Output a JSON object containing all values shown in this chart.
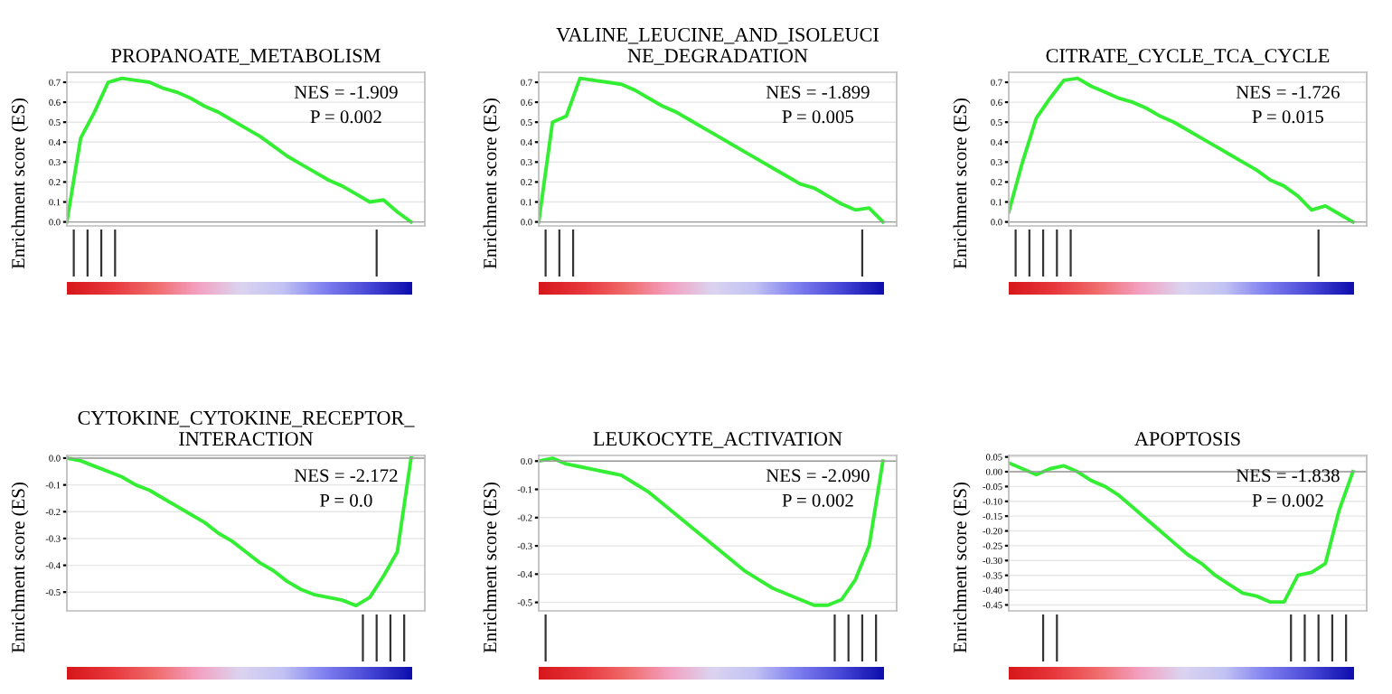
{
  "chart_data": [
    {
      "type": "line",
      "title": "PROPANOATE_METABOLISM",
      "ylabel": "Enrichment score (ES)",
      "categories": [
        null,
        null,
        null,
        null,
        null,
        null,
        null,
        null,
        null,
        null,
        null,
        null,
        null,
        null,
        null,
        null,
        null,
        null,
        null,
        null,
        null,
        null,
        null,
        null,
        null,
        null
      ],
      "series": [
        {
          "color": "#33ee33",
          "values": [
            0.0,
            0.42,
            0.55,
            0.7,
            0.72,
            0.71,
            0.7,
            0.67,
            0.65,
            0.62,
            0.58,
            0.55,
            0.51,
            0.47,
            0.43,
            0.38,
            0.33,
            0.29,
            0.25,
            0.21,
            0.18,
            0.14,
            0.1,
            0.11,
            0.05,
            0.0
          ]
        }
      ],
      "ylim": [
        -0.02,
        0.75
      ],
      "yticks": [
        {
          "value": 0,
          "label": "0.0"
        },
        0.1,
        0.2,
        0.3,
        0.4,
        0.5,
        0.6,
        0.7
      ],
      "grid": true,
      "tick_labels": "y",
      "marker": "none",
      "line_style": "solid",
      "annotations": [
        "NES = -1.909",
        "P = 0.002"
      ]
    },
    {
      "type": "line",
      "title": "VALINE_LEUCINE_AND_ISOLEUCI\nNE_DEGRADATION",
      "ylabel": "Enrichment score (ES)",
      "categories": [
        null,
        null,
        null,
        null,
        null,
        null,
        null,
        null,
        null,
        null,
        null,
        null,
        null,
        null,
        null,
        null,
        null,
        null,
        null,
        null,
        null,
        null,
        null,
        null,
        null,
        null
      ],
      "series": [
        {
          "color": "#33ee33",
          "values": [
            0.0,
            0.5,
            0.53,
            0.72,
            0.71,
            0.7,
            0.69,
            0.66,
            0.62,
            0.58,
            0.55,
            0.51,
            0.47,
            0.43,
            0.39,
            0.35,
            0.31,
            0.27,
            0.23,
            0.19,
            0.17,
            0.13,
            0.09,
            0.06,
            0.07,
            0.0
          ]
        }
      ],
      "ylim": [
        -0.02,
        0.75
      ],
      "yticks": [
        {
          "value": 0,
          "label": "0.0"
        },
        0.1,
        0.2,
        0.3,
        0.4,
        0.5,
        0.6,
        0.7
      ],
      "grid": true,
      "tick_labels": "y",
      "marker": "none",
      "line_style": "solid",
      "annotations": [
        "NES = -1.899",
        "P = 0.005"
      ]
    },
    {
      "type": "line",
      "title": "CITRATE_CYCLE_TCA_CYCLE",
      "ylabel": "Enrichment score (ES)",
      "categories": [
        null,
        null,
        null,
        null,
        null,
        null,
        null,
        null,
        null,
        null,
        null,
        null,
        null,
        null,
        null,
        null,
        null,
        null,
        null,
        null,
        null,
        null,
        null,
        null,
        null,
        null
      ],
      "series": [
        {
          "color": "#33ee33",
          "values": [
            0.05,
            0.3,
            0.52,
            0.62,
            0.71,
            0.72,
            0.68,
            0.65,
            0.62,
            0.6,
            0.57,
            0.53,
            0.5,
            0.46,
            0.42,
            0.38,
            0.34,
            0.3,
            0.26,
            0.21,
            0.18,
            0.13,
            0.06,
            0.08,
            0.04,
            0.0
          ]
        }
      ],
      "ylim": [
        -0.02,
        0.75
      ],
      "yticks": [
        {
          "value": 0,
          "label": "0.0"
        },
        0.1,
        0.2,
        0.3,
        0.4,
        0.5,
        0.6,
        0.7
      ],
      "grid": true,
      "tick_labels": "y",
      "marker": "none",
      "line_style": "solid",
      "annotations": [
        "NES = -1.726",
        "P = 0.015"
      ]
    },
    {
      "type": "line",
      "title": "CYTOKINE_CYTOKINE_RECEPTOR_\nINTERACTION",
      "ylabel": "Enrichment score (ES)",
      "categories": [
        null,
        null,
        null,
        null,
        null,
        null,
        null,
        null,
        null,
        null,
        null,
        null,
        null,
        null,
        null,
        null,
        null,
        null,
        null,
        null,
        null,
        null,
        null,
        null,
        null,
        null
      ],
      "series": [
        {
          "color": "#33ee33",
          "values": [
            0.0,
            -0.01,
            -0.03,
            -0.05,
            -0.07,
            -0.1,
            -0.12,
            -0.15,
            -0.18,
            -0.21,
            -0.24,
            -0.28,
            -0.31,
            -0.35,
            -0.39,
            -0.42,
            -0.46,
            -0.49,
            -0.51,
            -0.52,
            -0.53,
            -0.55,
            -0.52,
            -0.44,
            -0.35,
            0.0
          ]
        }
      ],
      "ylim": [
        -0.57,
        0.01
      ],
      "yticks": [
        {
          "value": 0,
          "label": "0.0"
        },
        -0.1,
        -0.2,
        -0.3,
        -0.4,
        -0.5
      ],
      "grid": true,
      "tick_labels": "y",
      "marker": "none",
      "line_style": "solid",
      "annotations": [
        "NES = -2.172",
        "P = 0.0"
      ]
    },
    {
      "type": "line",
      "title": "LEUKOCYTE_ACTIVATION",
      "ylabel": "Enrichment score (ES)",
      "categories": [
        null,
        null,
        null,
        null,
        null,
        null,
        null,
        null,
        null,
        null,
        null,
        null,
        null,
        null,
        null,
        null,
        null,
        null,
        null,
        null,
        null,
        null,
        null,
        null,
        null,
        null
      ],
      "series": [
        {
          "color": "#33ee33",
          "values": [
            0.0,
            0.01,
            -0.01,
            -0.02,
            -0.03,
            -0.04,
            -0.05,
            -0.08,
            -0.11,
            -0.15,
            -0.19,
            -0.23,
            -0.27,
            -0.31,
            -0.35,
            -0.39,
            -0.42,
            -0.45,
            -0.47,
            -0.49,
            -0.51,
            -0.51,
            -0.49,
            -0.42,
            -0.3,
            0.0
          ]
        }
      ],
      "ylim": [
        -0.53,
        0.02
      ],
      "yticks": [
        {
          "value": 0,
          "label": "0.0"
        },
        -0.1,
        -0.2,
        -0.3,
        -0.4,
        -0.5
      ],
      "grid": true,
      "tick_labels": "y",
      "marker": "none",
      "line_style": "solid",
      "annotations": [
        "NES = -2.090",
        "P = 0.002"
      ]
    },
    {
      "type": "line",
      "title": "APOPTOSIS",
      "ylabel": "Enrichment score (ES)",
      "categories": [
        null,
        null,
        null,
        null,
        null,
        null,
        null,
        null,
        null,
        null,
        null,
        null,
        null,
        null,
        null,
        null,
        null,
        null,
        null,
        null,
        null,
        null,
        null,
        null,
        null,
        null
      ],
      "series": [
        {
          "color": "#33ee33",
          "values": [
            0.03,
            0.01,
            -0.01,
            0.01,
            0.02,
            0.0,
            -0.03,
            -0.05,
            -0.08,
            -0.12,
            -0.16,
            -0.2,
            -0.24,
            -0.28,
            -0.31,
            -0.35,
            -0.38,
            -0.41,
            -0.42,
            -0.44,
            -0.44,
            -0.35,
            -0.34,
            -0.31,
            -0.13,
            0.0
          ]
        }
      ],
      "ylim": [
        -0.47,
        0.055
      ],
      "yticks": [
        {
          "value": 0.05,
          "label": "0.05"
        },
        {
          "value": 0,
          "label": "0.00"
        },
        {
          "value": -0.05,
          "label": "-0.05"
        },
        {
          "value": -0.1,
          "label": "-0.10"
        },
        {
          "value": -0.15,
          "label": "-0.15"
        },
        {
          "value": -0.2,
          "label": "-0.20"
        },
        {
          "value": -0.25,
          "label": "-0.25"
        },
        {
          "value": -0.3,
          "label": "-0.30"
        },
        {
          "value": -0.35,
          "label": "-0.35"
        },
        {
          "value": -0.4,
          "label": "-0.40"
        },
        {
          "value": -0.45,
          "label": "-0.45"
        }
      ],
      "grid": true,
      "tick_labels": "y",
      "marker": "none",
      "line_style": "solid",
      "annotations": [
        "NES = -1.838",
        "P = 0.002"
      ]
    }
  ]
}
